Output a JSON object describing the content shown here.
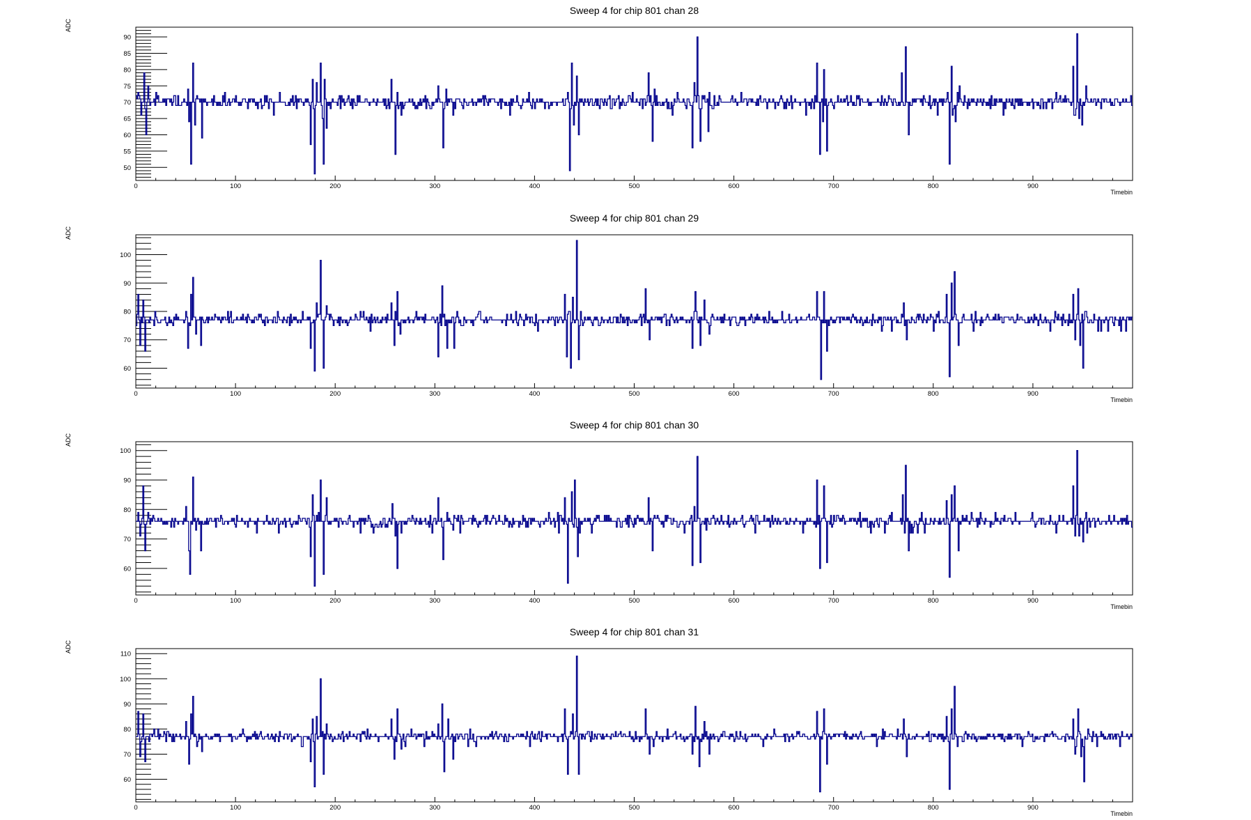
{
  "style": {
    "line_color": "#00008b",
    "frame_color": "#000000",
    "background": "#ffffff"
  },
  "chart_data": [
    {
      "type": "line",
      "title": "Sweep 4 for chip 801 chan 28",
      "xlabel": "Timebin",
      "ylabel": "ADC",
      "xlim": [
        0,
        1000
      ],
      "ylim": [
        46,
        93
      ],
      "xticks": [
        0,
        100,
        200,
        300,
        400,
        500,
        600,
        700,
        800,
        900
      ],
      "yticks": [
        50,
        55,
        60,
        65,
        70,
        75,
        80,
        85,
        90
      ],
      "baseline": 70,
      "grid": false,
      "legend": "none",
      "features": [
        {
          "x": 2,
          "y": 73
        },
        {
          "x": 5,
          "y": 66
        },
        {
          "x": 8,
          "y": 79
        },
        {
          "x": 10,
          "y": 60
        },
        {
          "x": 12,
          "y": 75
        },
        {
          "x": 52,
          "y": 74
        },
        {
          "x": 53,
          "y": 64
        },
        {
          "x": 55,
          "y": 51
        },
        {
          "x": 57,
          "y": 82
        },
        {
          "x": 59,
          "y": 63
        },
        {
          "x": 61,
          "y": 72
        },
        {
          "x": 66,
          "y": 59
        },
        {
          "x": 175,
          "y": 57
        },
        {
          "x": 177,
          "y": 77
        },
        {
          "x": 179,
          "y": 48
        },
        {
          "x": 181,
          "y": 76
        },
        {
          "x": 185,
          "y": 82
        },
        {
          "x": 187,
          "y": 65
        },
        {
          "x": 188,
          "y": 51
        },
        {
          "x": 189,
          "y": 77
        },
        {
          "x": 191,
          "y": 62
        },
        {
          "x": 256,
          "y": 77
        },
        {
          "x": 260,
          "y": 54
        },
        {
          "x": 262,
          "y": 73
        },
        {
          "x": 266,
          "y": 66
        },
        {
          "x": 303,
          "y": 75
        },
        {
          "x": 308,
          "y": 56
        },
        {
          "x": 311,
          "y": 74
        },
        {
          "x": 318,
          "y": 66
        },
        {
          "x": 433,
          "y": 73
        },
        {
          "x": 435,
          "y": 49
        },
        {
          "x": 437,
          "y": 82
        },
        {
          "x": 439,
          "y": 63
        },
        {
          "x": 442,
          "y": 78
        },
        {
          "x": 444,
          "y": 60
        },
        {
          "x": 514,
          "y": 79
        },
        {
          "x": 518,
          "y": 58
        },
        {
          "x": 520,
          "y": 74
        },
        {
          "x": 558,
          "y": 56
        },
        {
          "x": 560,
          "y": 76
        },
        {
          "x": 563,
          "y": 90
        },
        {
          "x": 566,
          "y": 58
        },
        {
          "x": 570,
          "y": 72
        },
        {
          "x": 574,
          "y": 61
        },
        {
          "x": 683,
          "y": 82
        },
        {
          "x": 686,
          "y": 54
        },
        {
          "x": 689,
          "y": 64
        },
        {
          "x": 690,
          "y": 80
        },
        {
          "x": 693,
          "y": 55
        },
        {
          "x": 768,
          "y": 79
        },
        {
          "x": 772,
          "y": 87
        },
        {
          "x": 775,
          "y": 60
        },
        {
          "x": 814,
          "y": 73
        },
        {
          "x": 816,
          "y": 51
        },
        {
          "x": 818,
          "y": 81
        },
        {
          "x": 822,
          "y": 64
        },
        {
          "x": 826,
          "y": 75
        },
        {
          "x": 940,
          "y": 81
        },
        {
          "x": 942,
          "y": 66
        },
        {
          "x": 944,
          "y": 91
        },
        {
          "x": 946,
          "y": 65
        },
        {
          "x": 949,
          "y": 63
        },
        {
          "x": 953,
          "y": 75
        }
      ]
    },
    {
      "type": "line",
      "title": "Sweep 4 for chip 801 chan 29",
      "xlabel": "Timebin",
      "ylabel": "ADC",
      "xlim": [
        0,
        1000
      ],
      "ylim": [
        53,
        107
      ],
      "xticks": [
        0,
        100,
        200,
        300,
        400,
        500,
        600,
        700,
        800,
        900
      ],
      "yticks": [
        60,
        70,
        80,
        90,
        100
      ],
      "baseline": 77,
      "grid": false,
      "legend": "none",
      "features": [
        {
          "x": 2,
          "y": 86
        },
        {
          "x": 4,
          "y": 68
        },
        {
          "x": 7,
          "y": 84
        },
        {
          "x": 9,
          "y": 66
        },
        {
          "x": 50,
          "y": 80
        },
        {
          "x": 52,
          "y": 67
        },
        {
          "x": 55,
          "y": 86
        },
        {
          "x": 57,
          "y": 92
        },
        {
          "x": 60,
          "y": 72
        },
        {
          "x": 65,
          "y": 68
        },
        {
          "x": 175,
          "y": 67
        },
        {
          "x": 179,
          "y": 59
        },
        {
          "x": 181,
          "y": 83
        },
        {
          "x": 185,
          "y": 98
        },
        {
          "x": 188,
          "y": 60
        },
        {
          "x": 191,
          "y": 82
        },
        {
          "x": 256,
          "y": 83
        },
        {
          "x": 259,
          "y": 68
        },
        {
          "x": 262,
          "y": 87
        },
        {
          "x": 265,
          "y": 72
        },
        {
          "x": 303,
          "y": 64
        },
        {
          "x": 307,
          "y": 89
        },
        {
          "x": 312,
          "y": 67
        },
        {
          "x": 319,
          "y": 67
        },
        {
          "x": 430,
          "y": 86
        },
        {
          "x": 432,
          "y": 64
        },
        {
          "x": 436,
          "y": 60
        },
        {
          "x": 438,
          "y": 85
        },
        {
          "x": 442,
          "y": 105
        },
        {
          "x": 444,
          "y": 63
        },
        {
          "x": 511,
          "y": 88
        },
        {
          "x": 515,
          "y": 70
        },
        {
          "x": 558,
          "y": 67
        },
        {
          "x": 561,
          "y": 87
        },
        {
          "x": 566,
          "y": 68
        },
        {
          "x": 570,
          "y": 84
        },
        {
          "x": 575,
          "y": 72
        },
        {
          "x": 683,
          "y": 87
        },
        {
          "x": 687,
          "y": 56
        },
        {
          "x": 690,
          "y": 87
        },
        {
          "x": 693,
          "y": 66
        },
        {
          "x": 770,
          "y": 83
        },
        {
          "x": 773,
          "y": 70
        },
        {
          "x": 813,
          "y": 86
        },
        {
          "x": 816,
          "y": 57
        },
        {
          "x": 818,
          "y": 90
        },
        {
          "x": 821,
          "y": 94
        },
        {
          "x": 825,
          "y": 68
        },
        {
          "x": 940,
          "y": 86
        },
        {
          "x": 942,
          "y": 70
        },
        {
          "x": 945,
          "y": 88
        },
        {
          "x": 947,
          "y": 68
        },
        {
          "x": 950,
          "y": 60
        },
        {
          "x": 953,
          "y": 80
        }
      ]
    },
    {
      "type": "line",
      "title": "Sweep 4 for chip 801 chan 30",
      "xlabel": "Timebin",
      "ylabel": "ADC",
      "xlim": [
        0,
        1000
      ],
      "ylim": [
        51,
        103
      ],
      "xticks": [
        0,
        100,
        200,
        300,
        400,
        500,
        600,
        700,
        800,
        900
      ],
      "yticks": [
        60,
        70,
        80,
        90,
        100
      ],
      "baseline": 76,
      "grid": false,
      "legend": "none",
      "features": [
        {
          "x": 2,
          "y": 79
        },
        {
          "x": 4,
          "y": 71
        },
        {
          "x": 7,
          "y": 88
        },
        {
          "x": 9,
          "y": 66
        },
        {
          "x": 12,
          "y": 79
        },
        {
          "x": 50,
          "y": 81
        },
        {
          "x": 53,
          "y": 66
        },
        {
          "x": 54,
          "y": 58
        },
        {
          "x": 57,
          "y": 91
        },
        {
          "x": 60,
          "y": 73
        },
        {
          "x": 65,
          "y": 66
        },
        {
          "x": 175,
          "y": 64
        },
        {
          "x": 177,
          "y": 85
        },
        {
          "x": 179,
          "y": 54
        },
        {
          "x": 183,
          "y": 79
        },
        {
          "x": 185,
          "y": 90
        },
        {
          "x": 188,
          "y": 58
        },
        {
          "x": 191,
          "y": 84
        },
        {
          "x": 257,
          "y": 82
        },
        {
          "x": 260,
          "y": 71
        },
        {
          "x": 262,
          "y": 60
        },
        {
          "x": 266,
          "y": 72
        },
        {
          "x": 303,
          "y": 84
        },
        {
          "x": 308,
          "y": 63
        },
        {
          "x": 312,
          "y": 79
        },
        {
          "x": 318,
          "y": 73
        },
        {
          "x": 430,
          "y": 84
        },
        {
          "x": 433,
          "y": 55
        },
        {
          "x": 437,
          "y": 86
        },
        {
          "x": 440,
          "y": 90
        },
        {
          "x": 443,
          "y": 64
        },
        {
          "x": 514,
          "y": 84
        },
        {
          "x": 518,
          "y": 66
        },
        {
          "x": 558,
          "y": 61
        },
        {
          "x": 560,
          "y": 81
        },
        {
          "x": 563,
          "y": 98
        },
        {
          "x": 566,
          "y": 62
        },
        {
          "x": 572,
          "y": 73
        },
        {
          "x": 683,
          "y": 90
        },
        {
          "x": 686,
          "y": 60
        },
        {
          "x": 690,
          "y": 88
        },
        {
          "x": 693,
          "y": 62
        },
        {
          "x": 769,
          "y": 85
        },
        {
          "x": 772,
          "y": 95
        },
        {
          "x": 775,
          "y": 66
        },
        {
          "x": 813,
          "y": 83
        },
        {
          "x": 816,
          "y": 57
        },
        {
          "x": 818,
          "y": 85
        },
        {
          "x": 821,
          "y": 88
        },
        {
          "x": 825,
          "y": 66
        },
        {
          "x": 940,
          "y": 88
        },
        {
          "x": 942,
          "y": 71
        },
        {
          "x": 944,
          "y": 100
        },
        {
          "x": 946,
          "y": 71
        },
        {
          "x": 950,
          "y": 69
        },
        {
          "x": 953,
          "y": 79
        }
      ]
    },
    {
      "type": "line",
      "title": "Sweep 4 for chip 801 chan 31",
      "xlabel": "Timebin",
      "ylabel": "ADC",
      "xlim": [
        0,
        1000
      ],
      "ylim": [
        51,
        112
      ],
      "xticks": [
        0,
        100,
        200,
        300,
        400,
        500,
        600,
        700,
        800,
        900
      ],
      "yticks": [
        60,
        70,
        80,
        90,
        100,
        110
      ],
      "baseline": 77,
      "grid": false,
      "legend": "none",
      "features": [
        {
          "x": 2,
          "y": 87
        },
        {
          "x": 4,
          "y": 69
        },
        {
          "x": 7,
          "y": 86
        },
        {
          "x": 9,
          "y": 67
        },
        {
          "x": 13,
          "y": 75
        },
        {
          "x": 50,
          "y": 83
        },
        {
          "x": 53,
          "y": 66
        },
        {
          "x": 55,
          "y": 86
        },
        {
          "x": 57,
          "y": 93
        },
        {
          "x": 61,
          "y": 73
        },
        {
          "x": 66,
          "y": 71
        },
        {
          "x": 175,
          "y": 67
        },
        {
          "x": 177,
          "y": 84
        },
        {
          "x": 179,
          "y": 57
        },
        {
          "x": 181,
          "y": 85
        },
        {
          "x": 185,
          "y": 100
        },
        {
          "x": 188,
          "y": 62
        },
        {
          "x": 191,
          "y": 82
        },
        {
          "x": 256,
          "y": 84
        },
        {
          "x": 259,
          "y": 68
        },
        {
          "x": 262,
          "y": 88
        },
        {
          "x": 266,
          "y": 72
        },
        {
          "x": 303,
          "y": 82
        },
        {
          "x": 307,
          "y": 90
        },
        {
          "x": 309,
          "y": 63
        },
        {
          "x": 313,
          "y": 84
        },
        {
          "x": 318,
          "y": 68
        },
        {
          "x": 430,
          "y": 88
        },
        {
          "x": 433,
          "y": 62
        },
        {
          "x": 438,
          "y": 86
        },
        {
          "x": 442,
          "y": 109
        },
        {
          "x": 444,
          "y": 62
        },
        {
          "x": 511,
          "y": 88
        },
        {
          "x": 515,
          "y": 70
        },
        {
          "x": 558,
          "y": 70
        },
        {
          "x": 561,
          "y": 89
        },
        {
          "x": 565,
          "y": 65
        },
        {
          "x": 570,
          "y": 83
        },
        {
          "x": 575,
          "y": 70
        },
        {
          "x": 683,
          "y": 87
        },
        {
          "x": 686,
          "y": 55
        },
        {
          "x": 690,
          "y": 88
        },
        {
          "x": 693,
          "y": 66
        },
        {
          "x": 770,
          "y": 84
        },
        {
          "x": 773,
          "y": 69
        },
        {
          "x": 813,
          "y": 85
        },
        {
          "x": 816,
          "y": 56
        },
        {
          "x": 818,
          "y": 88
        },
        {
          "x": 821,
          "y": 97
        },
        {
          "x": 824,
          "y": 73
        },
        {
          "x": 940,
          "y": 84
        },
        {
          "x": 942,
          "y": 70
        },
        {
          "x": 945,
          "y": 88
        },
        {
          "x": 948,
          "y": 69
        },
        {
          "x": 951,
          "y": 59
        },
        {
          "x": 955,
          "y": 80
        }
      ]
    }
  ]
}
